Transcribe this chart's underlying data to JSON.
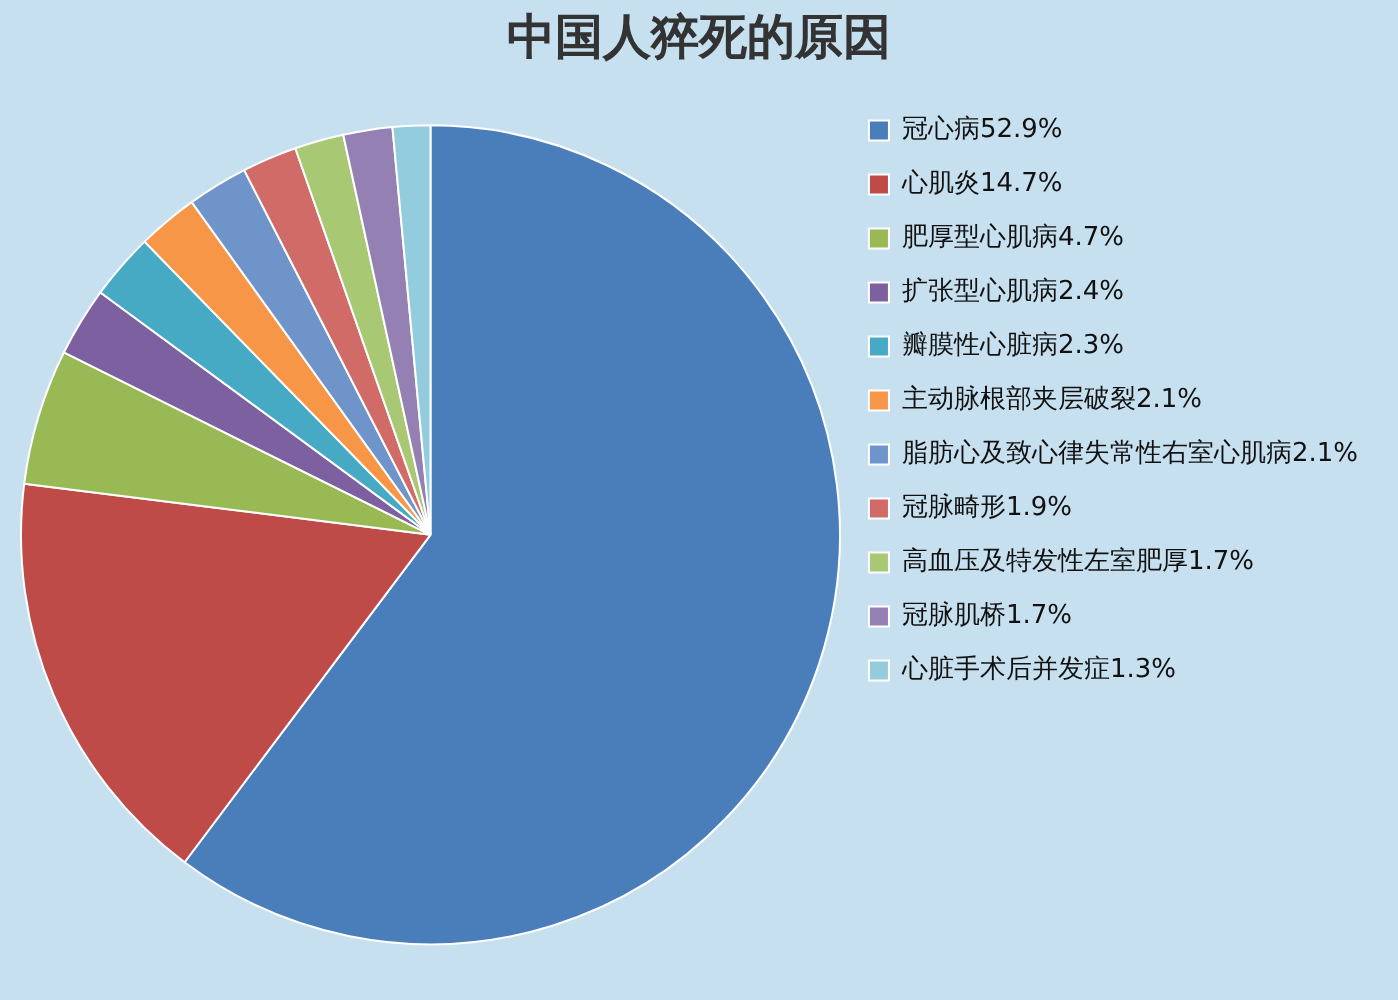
{
  "chart_data": {
    "type": "pie",
    "title": "中国人猝死的原因",
    "categories": [
      "冠心病",
      "心肌炎",
      "肥厚型心肌病",
      "扩张型心肌病",
      "瓣膜性心脏病",
      "主动脉根部夹层破裂",
      "脂肪心及致心律失常性右室心肌病",
      "冠脉畸形",
      "高血压及特发性左室肥厚",
      "冠脉肌桥",
      "心脏手术后并发症"
    ],
    "values": [
      52.9,
      14.7,
      4.7,
      2.4,
      2.3,
      2.1,
      2.1,
      1.9,
      1.7,
      1.7,
      1.3
    ],
    "value_labels": [
      "52.9%",
      "14.7%",
      "4.7%",
      "2.4%",
      "2.3%",
      "2.1%",
      "2.1%",
      "1.9%",
      "1.7%",
      "1.7%",
      "1.3%"
    ],
    "colors": [
      "#4a7ebb",
      "#be4b48",
      "#98b954",
      "#7d60a0",
      "#46aac5",
      "#f79646",
      "#6f94c9",
      "#d06b68",
      "#a9c874",
      "#9580b3",
      "#93cddd"
    ],
    "legend": "right"
  }
}
